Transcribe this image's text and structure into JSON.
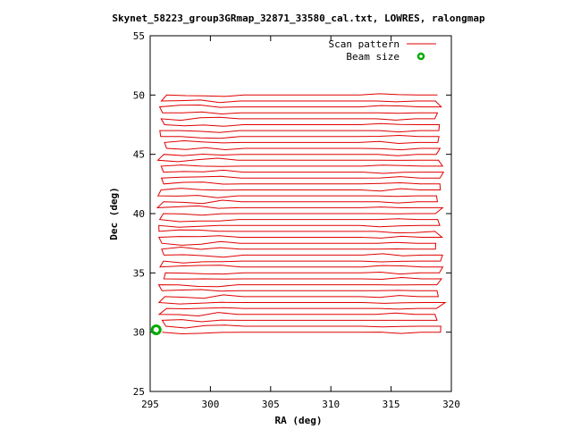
{
  "chart_data": {
    "type": "line",
    "title": "Skynet_58223_group3GRmap_32871_33580_cal.txt, LOWRES, ralongmap",
    "xlabel": "RA (deg)",
    "ylabel": "Dec (deg)",
    "xlim": [
      295,
      320
    ],
    "ylim": [
      25,
      55
    ],
    "x_ticks": [
      "295",
      "300",
      "305",
      "310",
      "315",
      "320"
    ],
    "y_ticks": [
      "25",
      "30",
      "35",
      "40",
      "45",
      "50",
      "55"
    ],
    "legend_position": "top-right",
    "grid": false,
    "series": [
      {
        "name": "Scan pattern",
        "color": "#e00000",
        "style": "raster-scan",
        "dec_start": 30.0,
        "dec_end": 50.0,
        "dec_step": 0.5,
        "ra_min_range": [
          295.6,
          296.4
        ],
        "ra_max_range": [
          318.6,
          319.5
        ]
      },
      {
        "name": "Beam size",
        "color": "#00aa00",
        "marker": "open-circle",
        "points": [
          [
            295.5,
            30.2
          ]
        ]
      }
    ]
  }
}
